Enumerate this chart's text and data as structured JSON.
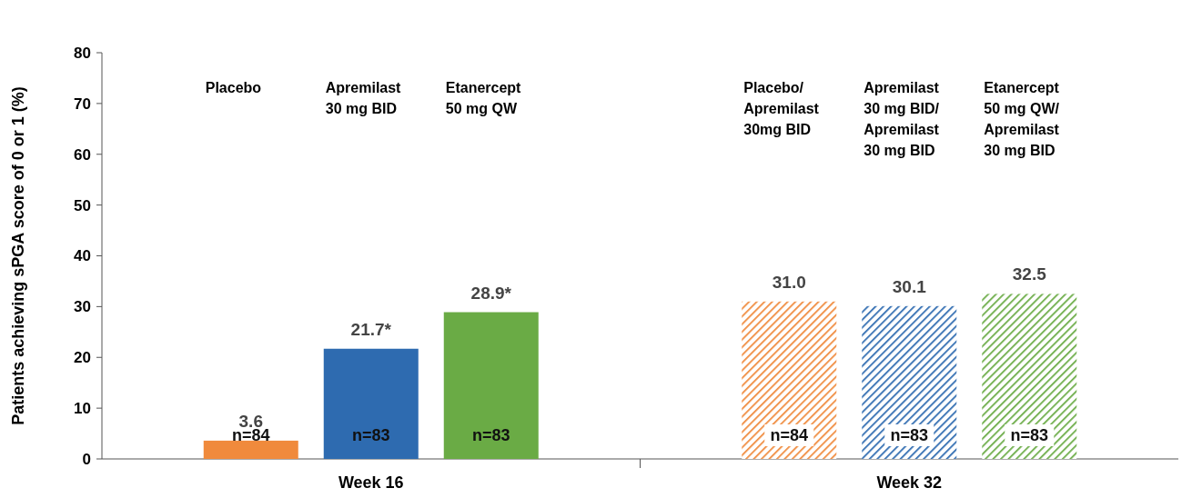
{
  "chart_data": {
    "type": "bar",
    "ylabel": "Patients achieving sPGA score of 0 or 1 (%)",
    "categories": [
      "Placebo",
      "Apremilast\n30 mg BID",
      "Etanercept\n50 mg QW",
      "Placebo/\nApremilast\n30mg BID",
      "Apremilast\n30 mg BID/\nApremilast\n30 mg BID",
      "Etanercept\n50 mg QW/\nApremilast\n30 mg BID"
    ],
    "values": [
      3.6,
      21.7,
      28.9,
      31.0,
      30.1,
      32.5
    ],
    "colors": [
      "#f08a3c",
      "#2e6bb0",
      "#6aab45",
      "#f08a3c",
      "#2e6bb0",
      "#6aab45"
    ],
    "value_labels": [
      "3.6",
      "21.7*",
      "28.9*",
      "31.0",
      "30.1",
      "32.5"
    ],
    "annotations": [
      "n=84",
      "n=83",
      "n=83",
      "n=84",
      "n=83",
      "n=83",
      "Week 16",
      "Week 32"
    ],
    "ylim": [
      0,
      80
    ],
    "yticks": [
      0,
      10,
      20,
      30,
      40,
      50,
      60,
      70,
      80
    ],
    "grid": false
  }
}
